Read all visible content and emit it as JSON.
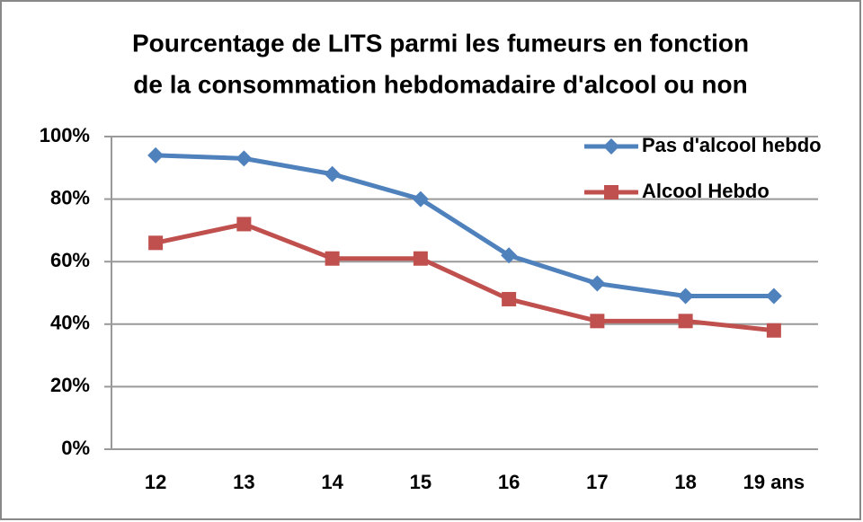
{
  "chart_data": {
    "type": "line",
    "title": [
      "Pourcentage de LITS parmi les fumeurs en fonction",
      "de la consommation hebdomadaire d'alcool ou non"
    ],
    "categories": [
      "12",
      "13",
      "14",
      "15",
      "16",
      "17",
      "18",
      "19 ans"
    ],
    "series": [
      {
        "name": "Pas d'alcool hebdo",
        "color": "#4f81bd",
        "marker": "diamond",
        "values": [
          94,
          93,
          88,
          80,
          62,
          53,
          49,
          49
        ]
      },
      {
        "name": "Alcool Hebdo",
        "color": "#c0504d",
        "marker": "square",
        "values": [
          66,
          72,
          61,
          61,
          48,
          41,
          41,
          38
        ]
      }
    ],
    "ylim": [
      0,
      100
    ],
    "yticks": [
      {
        "value": 0,
        "label": "0%"
      },
      {
        "value": 20,
        "label": "20%"
      },
      {
        "value": 40,
        "label": "40%"
      },
      {
        "value": 60,
        "label": "60%"
      },
      {
        "value": 80,
        "label": "80%"
      },
      {
        "value": 100,
        "label": "100%"
      }
    ],
    "grid": true,
    "legend": "upper right"
  }
}
